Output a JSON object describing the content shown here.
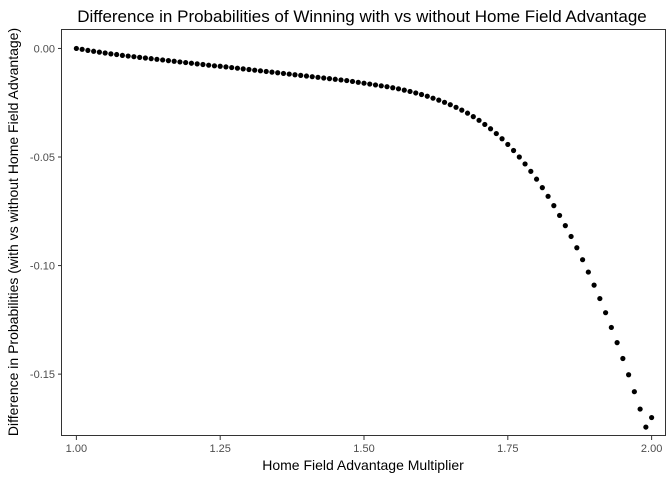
{
  "chart_data": {
    "type": "scatter",
    "title": "Difference in Probabilities of Winning with vs without Home Field Advantage",
    "xlabel": "Home Field Advantage Multiplier",
    "ylabel": "Difference in Probabilities (with vs without Home Field Advantage)",
    "xlim": [
      0.975,
      2.025
    ],
    "ylim": [
      -0.1785,
      0.0085
    ],
    "x_ticks": [
      1.0,
      1.25,
      1.5,
      1.75,
      2.0
    ],
    "x_tick_labels": [
      "1.00",
      "1.25",
      "1.50",
      "1.75",
      "2.00"
    ],
    "y_ticks": [
      0.0,
      -0.05,
      -0.1,
      -0.15
    ],
    "y_tick_labels": [
      "0.00",
      "-0.05",
      "-0.10",
      "-0.15"
    ],
    "grid": false,
    "marker_color": "#000000",
    "x": [
      1.0,
      1.01,
      1.02,
      1.03,
      1.04,
      1.05,
      1.06,
      1.07,
      1.08,
      1.09,
      1.1,
      1.11,
      1.12,
      1.13,
      1.14,
      1.15,
      1.16,
      1.17,
      1.18,
      1.19,
      1.2,
      1.21,
      1.22,
      1.23,
      1.24,
      1.25,
      1.26,
      1.27,
      1.28,
      1.29,
      1.3,
      1.31,
      1.32,
      1.33,
      1.34,
      1.35,
      1.36,
      1.37,
      1.38,
      1.39,
      1.4,
      1.41,
      1.42,
      1.43,
      1.44,
      1.45,
      1.46,
      1.47,
      1.48,
      1.49,
      1.5,
      1.51,
      1.52,
      1.53,
      1.54,
      1.55,
      1.56,
      1.57,
      1.58,
      1.59,
      1.6,
      1.61,
      1.62,
      1.63,
      1.64,
      1.65,
      1.66,
      1.67,
      1.68,
      1.69,
      1.7,
      1.71,
      1.72,
      1.73,
      1.74,
      1.75,
      1.76,
      1.77,
      1.78,
      1.79,
      1.8,
      1.81,
      1.82,
      1.83,
      1.84,
      1.85,
      1.86,
      1.87,
      1.88,
      1.89,
      1.9,
      1.91,
      1.92,
      1.93,
      1.94,
      1.95,
      1.96,
      1.97,
      1.98,
      1.99,
      2.0
    ],
    "y": [
      0.0,
      -0.0004,
      -0.0009,
      -0.0013,
      -0.0017,
      -0.0021,
      -0.0025,
      -0.0028,
      -0.0032,
      -0.0035,
      -0.0038,
      -0.0041,
      -0.0044,
      -0.0047,
      -0.005,
      -0.0053,
      -0.0056,
      -0.0059,
      -0.0062,
      -0.0065,
      -0.0068,
      -0.0071,
      -0.0074,
      -0.0077,
      -0.008,
      -0.0082,
      -0.0085,
      -0.0088,
      -0.0091,
      -0.0094,
      -0.0097,
      -0.01,
      -0.0103,
      -0.0106,
      -0.0109,
      -0.0112,
      -0.0115,
      -0.0118,
      -0.0121,
      -0.0124,
      -0.0127,
      -0.013,
      -0.0133,
      -0.0136,
      -0.0139,
      -0.0142,
      -0.0145,
      -0.0148,
      -0.0152,
      -0.0156,
      -0.016,
      -0.0164,
      -0.0168,
      -0.0172,
      -0.0176,
      -0.0181,
      -0.0186,
      -0.0192,
      -0.0198,
      -0.0205,
      -0.0212,
      -0.022,
      -0.0229,
      -0.0238,
      -0.0248,
      -0.0259,
      -0.0271,
      -0.0284,
      -0.0298,
      -0.0314,
      -0.0331,
      -0.035,
      -0.037,
      -0.0392,
      -0.0416,
      -0.0442,
      -0.047,
      -0.05,
      -0.0532,
      -0.0566,
      -0.0602,
      -0.0641,
      -0.0681,
      -0.0724,
      -0.0769,
      -0.0816,
      -0.0866,
      -0.0918,
      -0.0973,
      -0.103,
      -0.109,
      -0.1152,
      -0.1217,
      -0.1285,
      -0.1355,
      -0.1428,
      -0.1503,
      -0.1581,
      -0.1661,
      -0.1744,
      -0.17
    ]
  }
}
